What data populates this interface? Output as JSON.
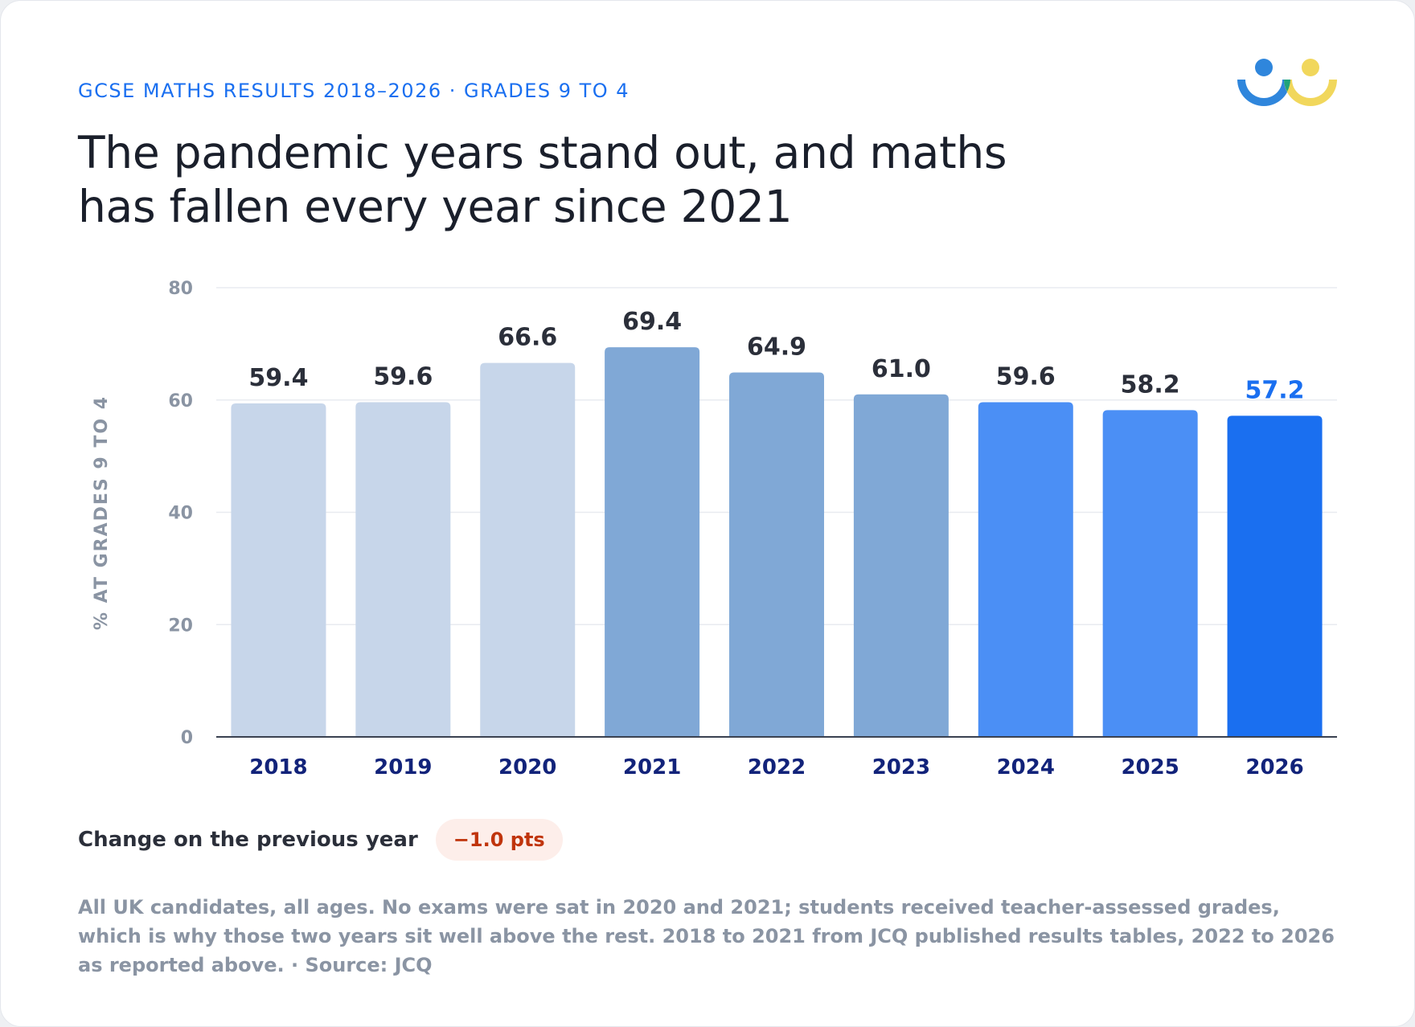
{
  "header": {
    "eyebrow": "GCSE MATHS RESULTS 2018–2026 · GRADES 9 TO 4",
    "title": "The pandemic years stand out, and maths has fallen every year since 2021"
  },
  "change": {
    "label": "Change on the previous year",
    "value": "−1.0 pts"
  },
  "footnote": "All UK candidates, all ages. No exams were sat in 2020 and 2021; students received teacher-assessed grades, which is why those two years sit well above the rest. 2018 to 2021 from JCQ published results tables, 2022 to 2026 as reported above. · Source: JCQ",
  "colors": {
    "accent": "#1a6ff0",
    "pre_pandemic_bar": "#c7d6ea",
    "pandemic_bar": "#80a8d6",
    "recent_bar": "#4b8ff5",
    "latest_bar": "#1a6ff0",
    "logo_blue": "#2f86dc",
    "logo_green": "#1fa37a",
    "logo_yellow": "#f1d75c"
  },
  "chart_data": {
    "type": "bar",
    "categories": [
      "2018",
      "2019",
      "2020",
      "2021",
      "2022",
      "2023",
      "2024",
      "2025",
      "2026"
    ],
    "values": [
      59.4,
      59.6,
      66.6,
      69.4,
      64.9,
      61.0,
      59.6,
      58.2,
      57.2
    ],
    "value_labels": [
      "59.4",
      "59.6",
      "66.6",
      "69.4",
      "64.9",
      "61.0",
      "59.6",
      "58.2",
      "57.2"
    ],
    "bar_colors": [
      "#c7d6ea",
      "#c7d6ea",
      "#c7d6ea",
      "#80a8d6",
      "#80a8d6",
      "#80a8d6",
      "#4b8ff5",
      "#4b8ff5",
      "#1a6ff0"
    ],
    "highlight_index": 8,
    "ylabel": "% AT GRADES 9 TO 4",
    "xlabel": "",
    "ylim": [
      0,
      80
    ],
    "yticks": [
      0,
      20,
      40,
      60,
      80
    ],
    "grid": true
  }
}
